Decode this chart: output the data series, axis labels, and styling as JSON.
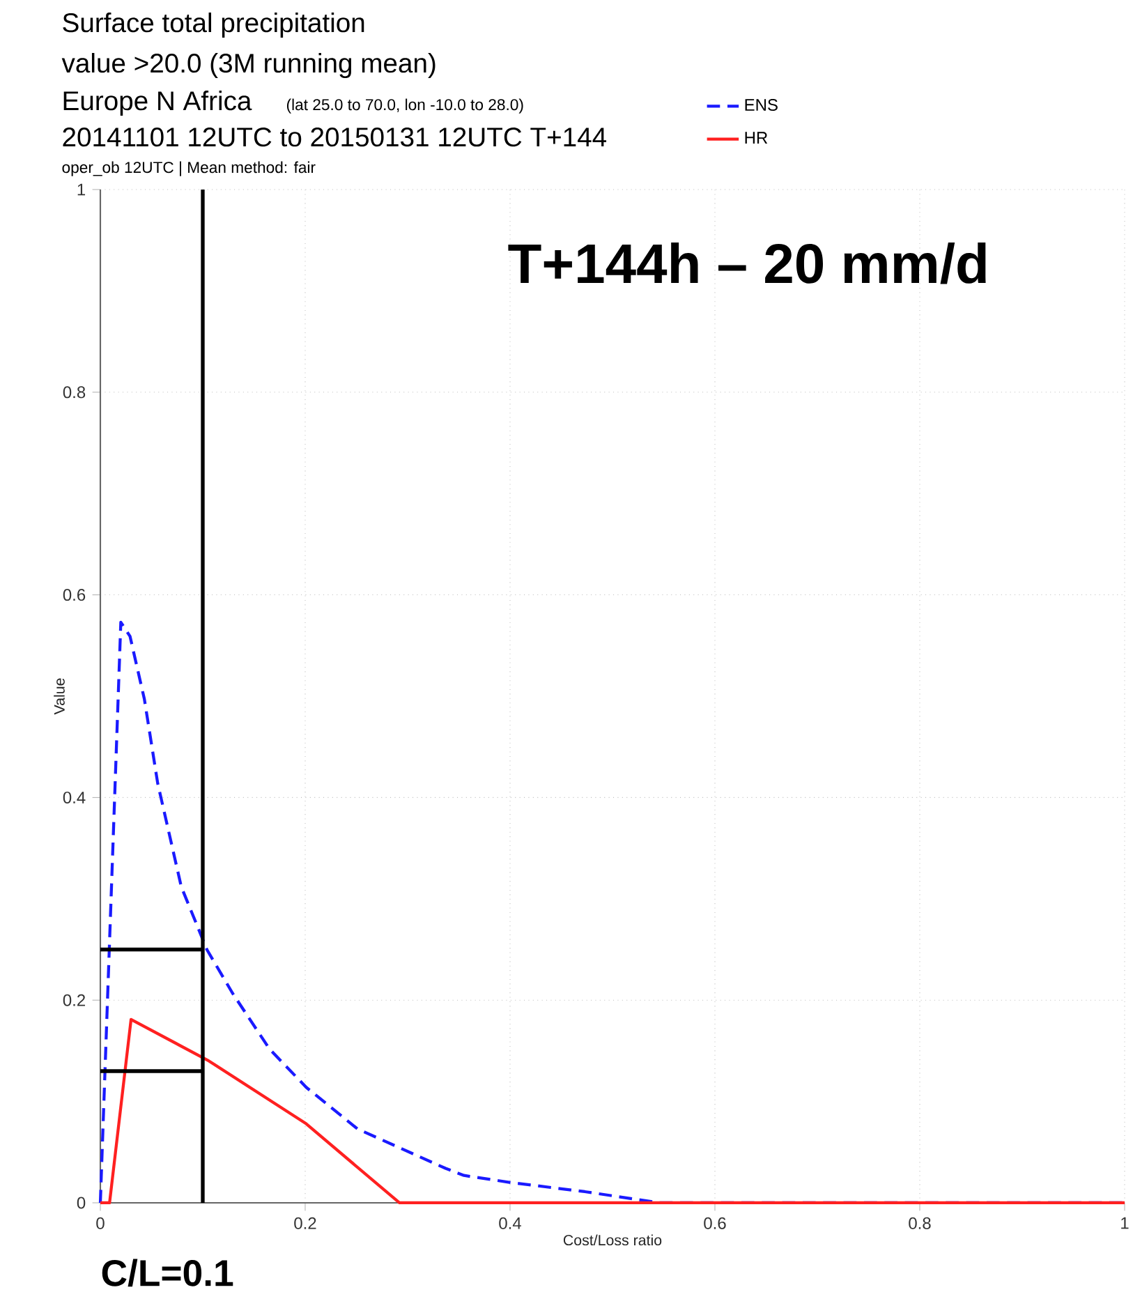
{
  "chart_data": {
    "type": "line",
    "title": "Surface total precipitation",
    "subtitle": "value >20.0 (3M running mean)",
    "xlabel": "Cost/Loss ratio",
    "ylabel": "Value",
    "annotations": [
      "Europe N Africa",
      "(lat 25.0 to 70.0, lon -10.0 to 28.0)",
      "20141101 12UTC to 20150131 12UTC T+144",
      "oper_ob 12UTC | Mean method: fair",
      "T+144h – 20 mm/d"
    ],
    "xlim": [
      0,
      1
    ],
    "ylim": [
      0,
      1
    ],
    "xticks": [
      0,
      0.2,
      0.4,
      0.6,
      0.8,
      1
    ],
    "yticks": [
      0,
      0.2,
      0.4,
      0.6,
      0.8,
      1
    ],
    "grid": true,
    "legend": "top right",
    "series": [
      {
        "name": "ENS",
        "color": "#1a1aff",
        "line_style": "dashed",
        "x": [
          0,
          0.02,
          0.029,
          0.043,
          0.056,
          0.079,
          0.104,
          0.129,
          0.165,
          0.201,
          0.251,
          0.337,
          0.355,
          0.401,
          0.473,
          0.546,
          1
        ],
        "values": [
          0,
          0.573,
          0.559,
          0.497,
          0.414,
          0.312,
          0.25,
          0.207,
          0.152,
          0.114,
          0.073,
          0.034,
          0.027,
          0.02,
          0.011,
          0,
          0
        ]
      },
      {
        "name": "HR",
        "color": "#ff2020",
        "line_style": "solid",
        "x": [
          0,
          0.009,
          0.03,
          0.106,
          0.201,
          0.292,
          1
        ],
        "values": [
          0,
          0,
          0.181,
          0.14,
          0.078,
          0,
          0
        ]
      }
    ],
    "ref_lines": [
      {
        "axis": "x",
        "value": 0.1,
        "label": "C/L=0.1",
        "color": "#000000"
      },
      {
        "axis": "y",
        "value": 0.25,
        "color": "#000000"
      },
      {
        "axis": "y",
        "value": 0.13,
        "color": "#000000"
      }
    ]
  }
}
